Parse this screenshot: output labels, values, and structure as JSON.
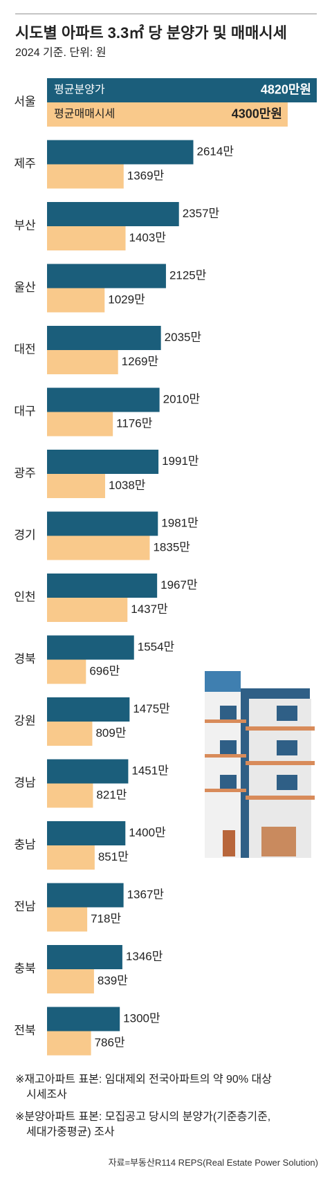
{
  "chart_data": {
    "type": "hbar",
    "title": "시도별 아파트 3.3㎡ 당 분양가 및 매매시세",
    "subtitle": "2024 기준. 단위: 원",
    "categories": [
      "서울",
      "제주",
      "부산",
      "울산",
      "대전",
      "대구",
      "광주",
      "경기",
      "인천",
      "경북",
      "강원",
      "경남",
      "충남",
      "전남",
      "충북",
      "전북"
    ],
    "series": [
      {
        "name": "평균분양가",
        "color": "#1b5e7b",
        "values": [
          4820,
          2614,
          2357,
          2125,
          2035,
          2010,
          1991,
          1981,
          1967,
          1554,
          1475,
          1451,
          1400,
          1367,
          1346,
          1300
        ],
        "value_labels": [
          "4820만원",
          "2614만",
          "2357만",
          "2125만",
          "2035만",
          "2010만",
          "1991만",
          "1981만",
          "1967만",
          "1554만",
          "1475만",
          "1451만",
          "1400만",
          "1367만",
          "1346만",
          "1300만"
        ]
      },
      {
        "name": "평균매매시세",
        "color": "#f9c98b",
        "values": [
          4300,
          1369,
          1403,
          1029,
          1269,
          1176,
          1038,
          1835,
          1437,
          696,
          809,
          821,
          851,
          718,
          839,
          786
        ],
        "value_labels": [
          "4300만원",
          "1369만",
          "1403만",
          "1029만",
          "1269만",
          "1176만",
          "1038만",
          "1835만",
          "1437만",
          "696만",
          "809만",
          "821만",
          "851만",
          "718만",
          "839만",
          "786만"
        ]
      }
    ],
    "notes": [
      [
        "※재고아파트 표본: 임대제외 전국아파트의 약 90% 대상",
        "시세조사"
      ],
      [
        "※분양아파트 표본: 모집공고 당시의 분양가(기준층기준,",
        "세대가중평균) 조사"
      ]
    ],
    "source": "자료=부동산R114 REPS(Real Estate Power Solution)"
  }
}
